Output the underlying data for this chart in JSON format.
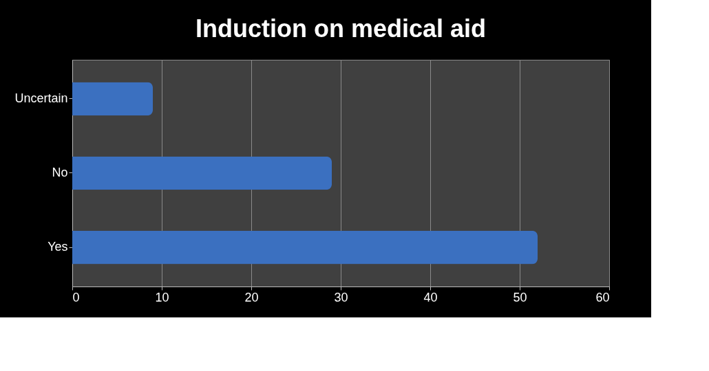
{
  "chart_data": {
    "type": "bar",
    "orientation": "horizontal",
    "title": "Induction on medical aid",
    "categories": [
      "Uncertain",
      "No",
      "Yes"
    ],
    "values": [
      9,
      29,
      52
    ],
    "color": "#3b70c0",
    "xlim": [
      0,
      60
    ],
    "xticks": [
      0,
      10,
      20,
      30,
      40,
      50,
      60
    ],
    "grid": "x"
  }
}
